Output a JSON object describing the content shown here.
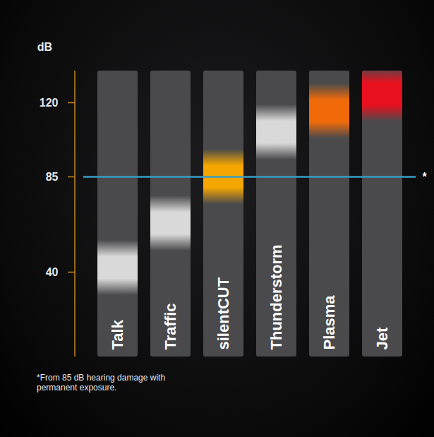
{
  "chart_data": {
    "type": "bar",
    "y_label": "dB",
    "categories": [
      "Talk",
      "Traffic",
      "silentCUT",
      "Thunderstorm",
      "Plasma",
      "Jet"
    ],
    "values": [
      42,
      63,
      85,
      106,
      116,
      124
    ],
    "colors": [
      "#d9d9d9",
      "#d9d9d9",
      "#f5a600",
      "#d9d9d9",
      "#f06a0a",
      "#e8101e"
    ],
    "ylim": [
      0,
      135
    ],
    "yticks": [
      40,
      85,
      120
    ],
    "tick_labels": "y",
    "annotations": [
      {
        "y": 85,
        "text": "*"
      }
    ],
    "footnote": "*From 85 dB hearing damage with permanent exposure."
  }
}
